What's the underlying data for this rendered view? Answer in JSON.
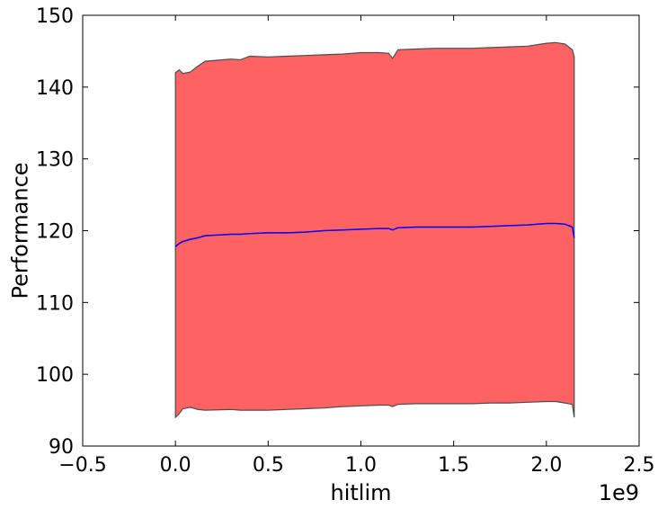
{
  "chart_data": {
    "type": "area",
    "xlabel": "hitlim",
    "ylabel": "Performance",
    "x_offset_label": "1e9",
    "xlim": [
      -0.5,
      2.5
    ],
    "ylim": [
      90,
      150
    ],
    "x_ticks": [
      -0.5,
      0.0,
      0.5,
      1.0,
      1.5,
      2.0,
      2.5
    ],
    "x_tick_labels": [
      "−0.5",
      "0.0",
      "0.5",
      "1.0",
      "1.5",
      "2.0",
      "2.5"
    ],
    "y_ticks": [
      90,
      100,
      110,
      120,
      130,
      140,
      150
    ],
    "y_tick_labels": [
      "90",
      "100",
      "110",
      "120",
      "130",
      "140",
      "150"
    ],
    "grid": false,
    "x": [
      0.0,
      0.02,
      0.04,
      0.08,
      0.12,
      0.16,
      0.3,
      0.35,
      0.4,
      0.5,
      0.6,
      0.7,
      0.8,
      0.9,
      1.0,
      1.1,
      1.15,
      1.17,
      1.2,
      1.3,
      1.4,
      1.5,
      1.6,
      1.7,
      1.8,
      1.9,
      2.0,
      2.05,
      2.1,
      2.14,
      2.15
    ],
    "mean": [
      117.8,
      118.2,
      118.5,
      118.8,
      119.0,
      119.3,
      119.5,
      119.5,
      119.6,
      119.7,
      119.7,
      119.8,
      120.0,
      120.1,
      120.2,
      120.3,
      120.3,
      120.1,
      120.4,
      120.5,
      120.5,
      120.5,
      120.5,
      120.6,
      120.7,
      120.8,
      121.0,
      121.0,
      120.9,
      120.5,
      119.0
    ],
    "upper": [
      142.0,
      142.4,
      141.9,
      142.1,
      142.9,
      143.6,
      143.9,
      143.8,
      144.3,
      144.2,
      144.3,
      144.4,
      144.5,
      144.6,
      144.8,
      144.8,
      144.7,
      144.0,
      145.2,
      145.3,
      145.4,
      145.4,
      145.4,
      145.5,
      145.6,
      145.7,
      146.1,
      146.2,
      146.0,
      145.2,
      144.2
    ],
    "lower": [
      94.0,
      94.5,
      95.2,
      95.4,
      95.1,
      95.0,
      95.1,
      95.0,
      95.0,
      95.0,
      95.1,
      95.2,
      95.3,
      95.5,
      95.6,
      95.7,
      95.7,
      95.5,
      95.8,
      95.9,
      95.9,
      95.9,
      95.9,
      96.0,
      96.0,
      96.1,
      96.2,
      96.2,
      96.0,
      95.8,
      94.0
    ],
    "colors": {
      "band_fill": "#ff6262",
      "band_edge": "#4d4d4d",
      "mean_line": "#0000ff"
    }
  }
}
